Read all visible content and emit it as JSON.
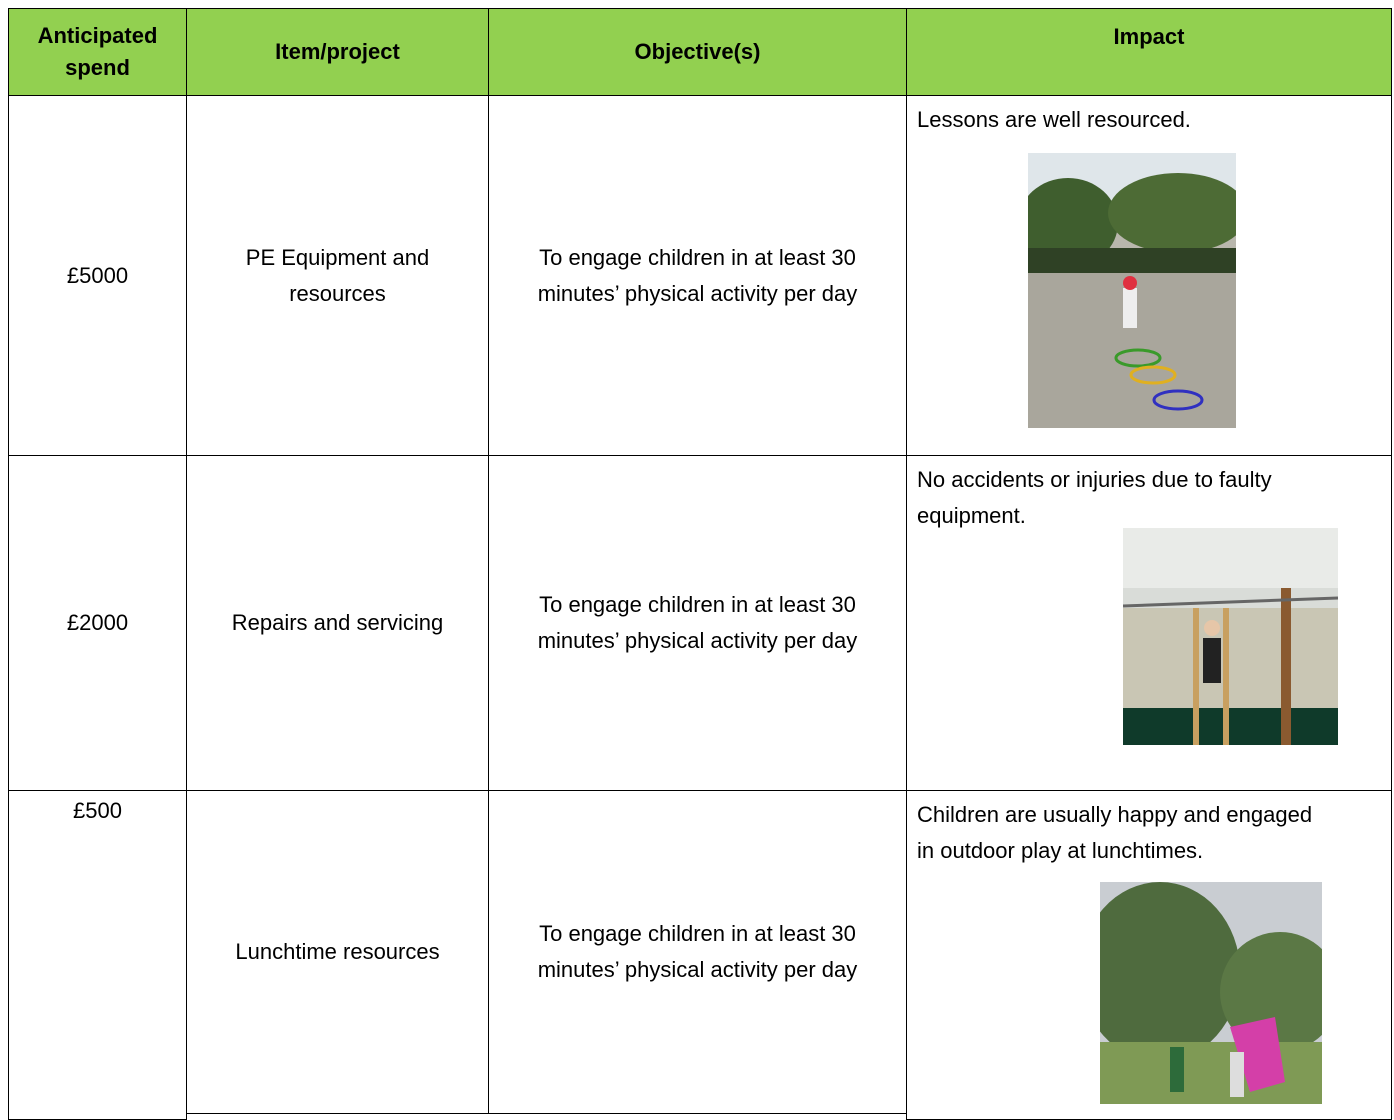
{
  "table": {
    "header": [
      "Anticipated spend",
      "Item/project",
      "Objective(s)",
      "Impact"
    ],
    "rows": [
      [
        "£5000",
        "PE Equipment and resources",
        "To engage children in at least 30 minutes’ physical activity per day",
        "Lessons are well resourced."
      ],
      [
        "£2000",
        "Repairs and servicing",
        "To engage children in at least 30 minutes’ physical activity per day",
        "No accidents or injuries due to faulty equipment."
      ],
      [
        "£500",
        "Lunchtime resources",
        "To engage children in at least 30 minutes’ physical activity per day",
        "Children are usually happy and engaged in outdoor play at lunchtimes."
      ]
    ]
  }
}
